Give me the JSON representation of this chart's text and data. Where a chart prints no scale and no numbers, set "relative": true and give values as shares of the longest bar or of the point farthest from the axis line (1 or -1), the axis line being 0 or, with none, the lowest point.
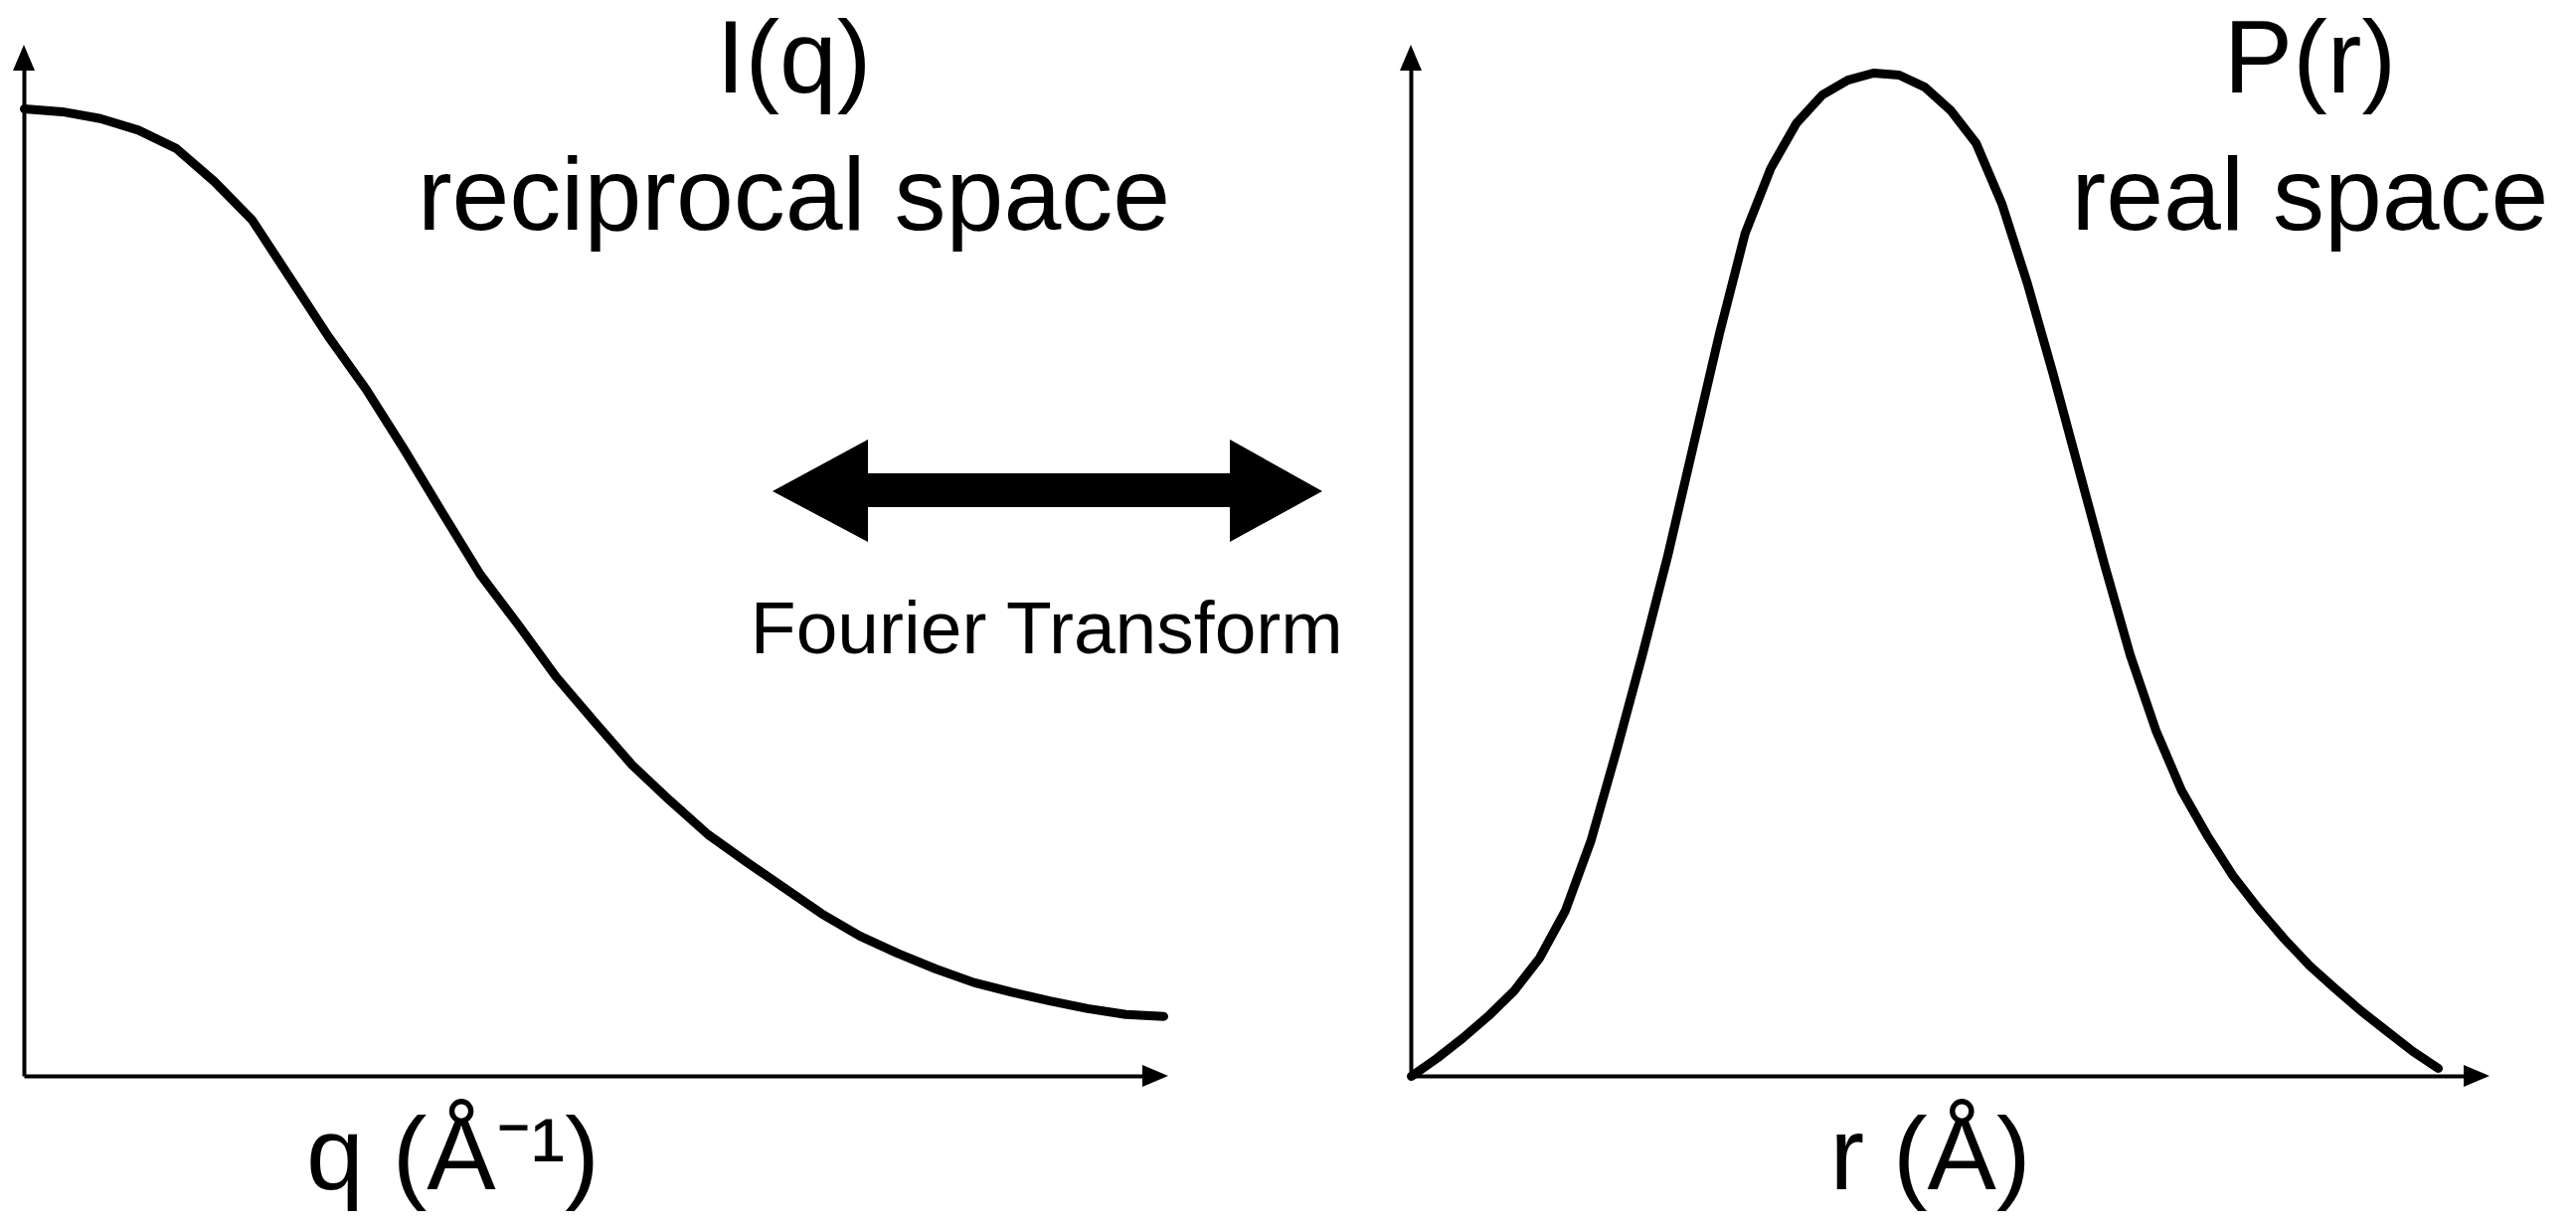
{
  "chart_data": [
    {
      "type": "line",
      "title": "I(q)",
      "subtitle": "reciprocal space",
      "xlabel": "q (Å⁻¹)",
      "relative": true,
      "categories": [
        null,
        null,
        null,
        null,
        null,
        null,
        null,
        null,
        null,
        null,
        null,
        null,
        null,
        null,
        null,
        null,
        null,
        null,
        null,
        null,
        null,
        null,
        null,
        null,
        null,
        null,
        null,
        null,
        null,
        null,
        null
      ],
      "series": [
        {
          "color": "#000000",
          "values": [
            1.0,
            0.997,
            0.99,
            0.978,
            0.959,
            0.925,
            0.885,
            0.825,
            0.765,
            0.71,
            0.648,
            0.583,
            0.519,
            0.467,
            0.413,
            0.367,
            0.322,
            0.285,
            0.25,
            0.222,
            0.195,
            0.168,
            0.145,
            0.127,
            0.111,
            0.097,
            0.087,
            0.078,
            0.07,
            0.064,
            0.062
          ]
        }
      ],
      "annotations": [
        "Fourier Transform"
      ]
    },
    {
      "type": "line",
      "title": "P(r)",
      "subtitle": "real space",
      "xlabel": "r (Å)",
      "relative": true,
      "categories": [
        null,
        null,
        null,
        null,
        null,
        null,
        null,
        null,
        null,
        null,
        null,
        null,
        null,
        null,
        null,
        null,
        null,
        null,
        null,
        null,
        null,
        null,
        null,
        null,
        null,
        null,
        null,
        null,
        null,
        null,
        null,
        null,
        null,
        null,
        null,
        null,
        null,
        null,
        null,
        null,
        null
      ],
      "series": [
        {
          "color": "#000000",
          "values": [
            0.0,
            0.018,
            0.038,
            0.06,
            0.085,
            0.118,
            0.165,
            0.235,
            0.325,
            0.42,
            0.52,
            0.63,
            0.74,
            0.84,
            0.905,
            0.95,
            0.978,
            0.993,
            1.0,
            0.998,
            0.986,
            0.963,
            0.93,
            0.87,
            0.79,
            0.7,
            0.605,
            0.51,
            0.42,
            0.345,
            0.285,
            0.24,
            0.2,
            0.167,
            0.137,
            0.11,
            0.087,
            0.065,
            0.045,
            0.025,
            0.008
          ]
        }
      ]
    }
  ]
}
